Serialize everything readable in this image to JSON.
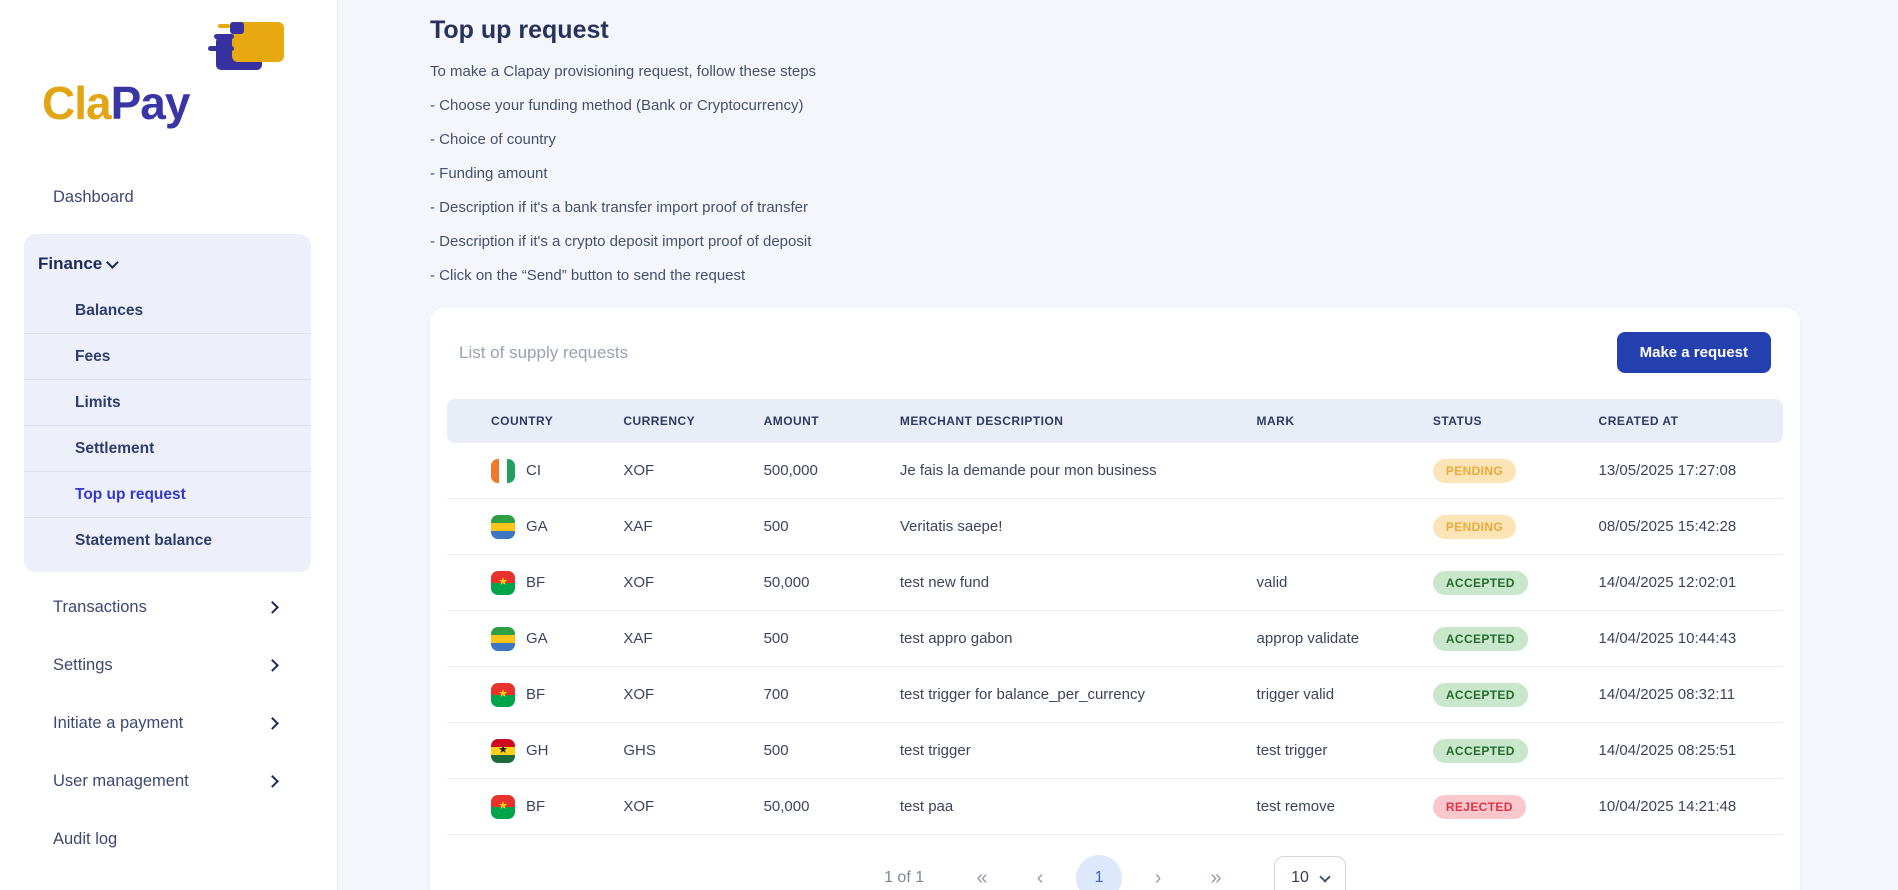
{
  "sidebar": {
    "logo": {
      "part1": "Cla",
      "part2": "Pay"
    },
    "dashboard": "Dashboard",
    "finance": {
      "label": "Finance",
      "items": [
        {
          "label": "Balances",
          "active": false
        },
        {
          "label": "Fees",
          "active": false
        },
        {
          "label": "Limits",
          "active": false
        },
        {
          "label": "Settlement",
          "active": false
        },
        {
          "label": "Top up request",
          "active": true
        },
        {
          "label": "Statement balance",
          "active": false
        }
      ]
    },
    "menu": [
      {
        "label": "Transactions",
        "chevron": true
      },
      {
        "label": "Settings",
        "chevron": true
      },
      {
        "label": "Initiate a payment",
        "chevron": true
      },
      {
        "label": "User management",
        "chevron": true
      },
      {
        "label": "Audit log",
        "chevron": false
      }
    ]
  },
  "main": {
    "title": "Top up request",
    "intro": "To make a Clapay provisioning request, follow these steps",
    "steps": [
      "- Choose your funding method (Bank or Cryptocurrency)",
      "- Choice of country",
      "- Funding amount",
      "- Description if it's a bank transfer import proof of transfer",
      "- Description if it's a crypto deposit import proof of deposit",
      "- Click on the “Send” button to send the request"
    ]
  },
  "card": {
    "list_title": "List of supply requests",
    "make_request_label": "Make a request"
  },
  "table": {
    "columns": [
      "COUNTRY",
      "CURRENCY",
      "AMOUNT",
      "MERCHANT DESCRIPTION",
      "MARK",
      "STATUS",
      "CREATED AT"
    ],
    "rows": [
      {
        "country": "CI",
        "flag": "ci",
        "currency": "XOF",
        "amount": "500,000",
        "description": "Je fais la demande pour mon business",
        "mark": "",
        "status": "PENDING",
        "created_at": "13/05/2025 17:27:08"
      },
      {
        "country": "GA",
        "flag": "ga",
        "currency": "XAF",
        "amount": "500",
        "description": "Veritatis saepe!",
        "mark": "",
        "status": "PENDING",
        "created_at": "08/05/2025 15:42:28"
      },
      {
        "country": "BF",
        "flag": "bf",
        "currency": "XOF",
        "amount": "50,000",
        "description": "test new fund",
        "mark": "valid",
        "status": "ACCEPTED",
        "created_at": "14/04/2025 12:02:01"
      },
      {
        "country": "GA",
        "flag": "ga",
        "currency": "XAF",
        "amount": "500",
        "description": "test appro gabon",
        "mark": "approp validate",
        "status": "ACCEPTED",
        "created_at": "14/04/2025 10:44:43"
      },
      {
        "country": "BF",
        "flag": "bf",
        "currency": "XOF",
        "amount": "700",
        "description": "test trigger for balance_per_currency",
        "mark": "trigger valid",
        "status": "ACCEPTED",
        "created_at": "14/04/2025 08:32:11"
      },
      {
        "country": "GH",
        "flag": "gh",
        "currency": "GHS",
        "amount": "500",
        "description": "test trigger",
        "mark": "test trigger",
        "status": "ACCEPTED",
        "created_at": "14/04/2025 08:25:51"
      },
      {
        "country": "BF",
        "flag": "bf",
        "currency": "XOF",
        "amount": "50,000",
        "description": "test paa",
        "mark": "test remove",
        "status": "REJECTED",
        "created_at": "10/04/2025 14:21:48"
      }
    ]
  },
  "pagination": {
    "info": "1 of 1",
    "first": "«",
    "prev": "‹",
    "current": "1",
    "next": "›",
    "last": "»",
    "page_size": "10"
  },
  "colors": {
    "accent": "#2440ae",
    "pending_bg": "#fbe5b6",
    "pending_text": "#e9a93d",
    "accepted_bg": "#c9e7cb",
    "accepted_text": "#256b2d",
    "rejected_bg": "#f9c7cc",
    "rejected_text": "#dc3545",
    "flag_ci": [
      "#f0792c",
      "#ffffff",
      "#22a060"
    ],
    "flag_ga": [
      "#2f9e44",
      "#fcc419",
      "#3b76c4"
    ],
    "flag_bf": [
      "#e8332a",
      "#00a44a"
    ],
    "flag_bf_star": "#fcd116",
    "flag_gh": [
      "#cf0921",
      "#fcd116",
      "#1b6b3c"
    ],
    "flag_gh_star": "#1a1a1a"
  }
}
